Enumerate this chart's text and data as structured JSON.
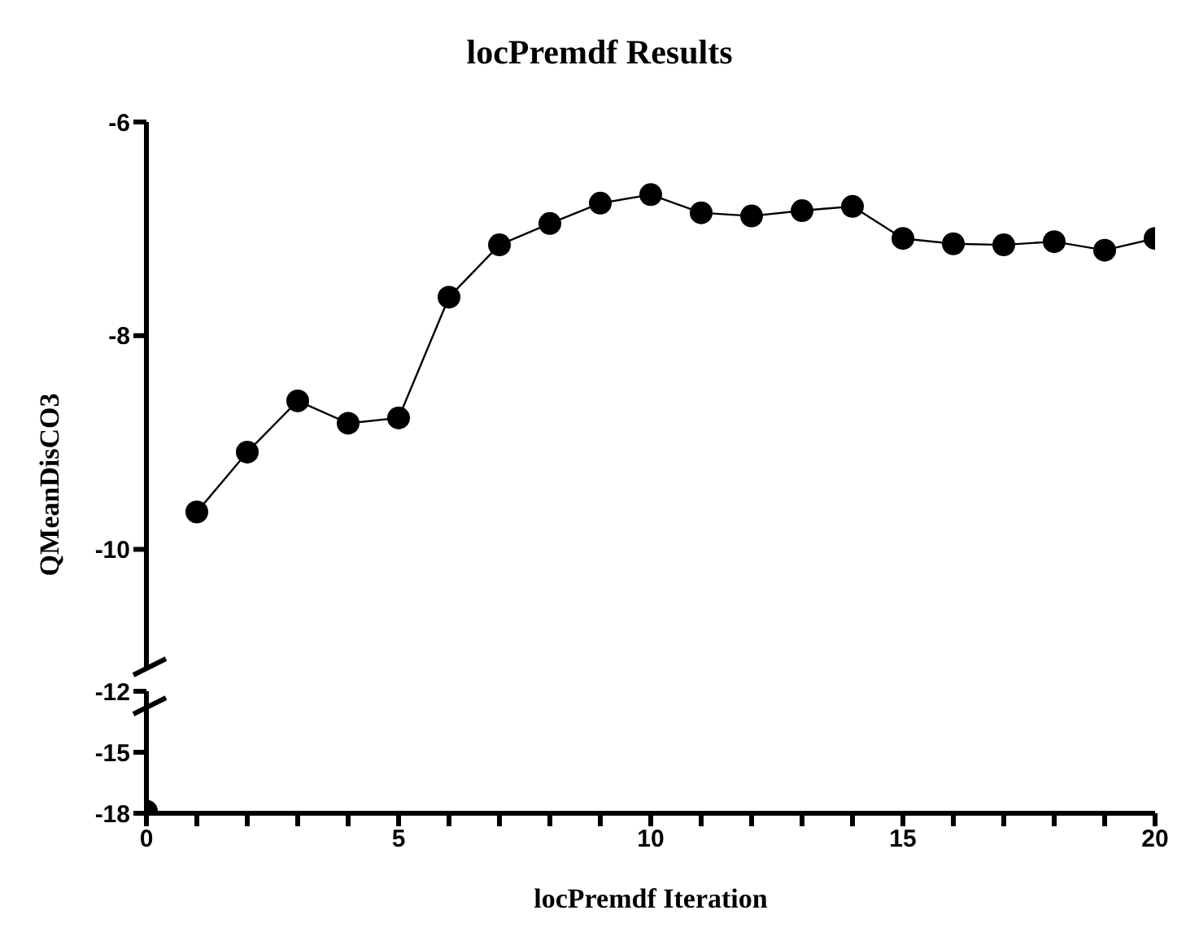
{
  "chart_data": [
    {
      "type": "line",
      "title": "locPremdf Results",
      "ylabel": "QMeanDisCO3",
      "x": [
        1,
        2,
        3,
        4,
        5,
        6,
        7,
        8,
        9,
        10,
        11,
        12,
        13,
        14,
        15,
        16,
        17,
        18,
        19,
        20
      ],
      "series": [
        {
          "color": "#000000",
          "values": [
            -9.65,
            -9.09,
            -8.61,
            -8.82,
            -8.77,
            -7.64,
            -7.15,
            -6.95,
            -6.76,
            -6.68,
            -6.85,
            -6.88,
            -6.83,
            -6.79,
            -7.09,
            -7.14,
            -7.15,
            -7.12,
            -7.2,
            -7.09
          ]
        }
      ],
      "xlim": [
        0,
        20
      ],
      "ylim": [
        -11.1,
        -6
      ],
      "yticks": [
        -6,
        -8,
        -10
      ],
      "tick_labels": "y",
      "marker": "circle",
      "line_style": "solid"
    },
    {
      "type": "scatter",
      "xlabel": "locPremdf Iteration",
      "x": [
        0
      ],
      "series": [
        {
          "color": "#000000",
          "values": [
            -17.9
          ]
        }
      ],
      "xlim": [
        0,
        20
      ],
      "xticks": [
        0,
        {
          "value": 1,
          "label": null
        },
        {
          "value": 2,
          "label": null
        },
        {
          "value": 3,
          "label": null
        },
        {
          "value": 4,
          "label": null
        },
        5,
        {
          "value": 6,
          "label": null
        },
        {
          "value": 7,
          "label": null
        },
        {
          "value": 8,
          "label": null
        },
        {
          "value": 9,
          "label": null
        },
        10,
        {
          "value": 11,
          "label": null
        },
        {
          "value": 12,
          "label": null
        },
        {
          "value": 13,
          "label": null
        },
        {
          "value": 14,
          "label": null
        },
        15,
        {
          "value": 16,
          "label": null
        },
        {
          "value": 17,
          "label": null
        },
        {
          "value": 18,
          "label": null
        },
        {
          "value": 19,
          "label": null
        },
        20
      ],
      "ylim": [
        -18,
        -12
      ],
      "yticks": [
        -18,
        -15,
        -12
      ],
      "marker": "circle"
    }
  ]
}
